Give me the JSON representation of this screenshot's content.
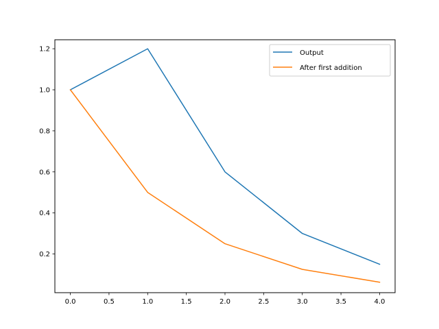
{
  "chart_data": {
    "type": "line",
    "title": "",
    "xlabel": "",
    "ylabel": "",
    "xlim": [
      -0.2,
      4.2
    ],
    "ylim": [
      0.0115,
      1.2438
    ],
    "x_ticks": [
      {
        "value": 0.0,
        "label": "0.0"
      },
      {
        "value": 0.5,
        "label": "0.5"
      },
      {
        "value": 1.0,
        "label": "1.0"
      },
      {
        "value": 1.5,
        "label": "1.5"
      },
      {
        "value": 2.0,
        "label": "2.0"
      },
      {
        "value": 2.5,
        "label": "2.5"
      },
      {
        "value": 3.0,
        "label": "3.0"
      },
      {
        "value": 3.5,
        "label": "3.5"
      },
      {
        "value": 4.0,
        "label": "4.0"
      }
    ],
    "y_ticks": [
      {
        "value": 0.2,
        "label": "0.2"
      },
      {
        "value": 0.4,
        "label": "0.4"
      },
      {
        "value": 0.6,
        "label": "0.6"
      },
      {
        "value": 0.8,
        "label": "0.8"
      },
      {
        "value": 1.0,
        "label": "1.0"
      },
      {
        "value": 1.2,
        "label": "1.2"
      }
    ],
    "grid": false,
    "legend_position": "top-right",
    "series": [
      {
        "name": "Output",
        "color": "#1f77b4",
        "x": [
          0,
          1,
          2,
          3,
          4
        ],
        "y": [
          1.0,
          1.2,
          0.6,
          0.3,
          0.15
        ]
      },
      {
        "name": "After first addition",
        "color": "#ff7f0e",
        "x": [
          0,
          1,
          2,
          3,
          4
        ],
        "y": [
          1.0,
          0.5,
          0.25,
          0.125,
          0.0625
        ]
      }
    ]
  }
}
